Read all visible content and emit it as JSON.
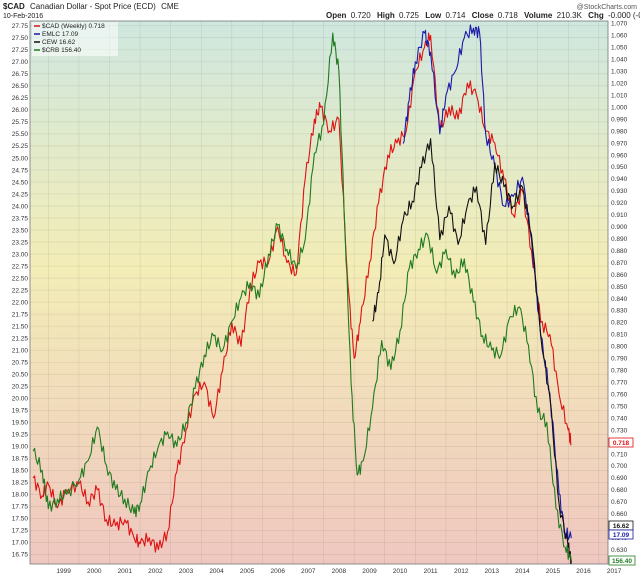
{
  "header": {
    "symbol": "$CAD",
    "name": "Canadian Dollar - Spot Price (ECD)",
    "exchange": "CME",
    "date": "10-Feb-2016",
    "open_label": "Open",
    "open_value": "0.720",
    "high_label": "High",
    "high_value": "0.725",
    "low_label": "Low",
    "low_value": "0.714",
    "close_label": "Close",
    "close_value": "0.718",
    "volume_label": "Volume",
    "volume_value": "210.3K",
    "chg_label": "Chg",
    "chg_value": "-0.000 (-0.04%)",
    "watermark": "@StockCharts.com"
  },
  "price_tags": {
    "cad": "0.718",
    "cew": "16.62",
    "emlc": "17.09",
    "crb": "156.40"
  },
  "chart_data": {
    "type": "line",
    "x_labels": [
      "1999",
      "2000",
      "2001",
      "2002",
      "2003",
      "2004",
      "2005",
      "2006",
      "2007",
      "2008",
      "2009",
      "2010",
      "2011",
      "2012",
      "2013",
      "2014",
      "2015",
      "2016",
      "2017"
    ],
    "left_axis_ticks": [
      "27.75",
      "27.50",
      "27.25",
      "27.00",
      "26.75",
      "26.50",
      "26.25",
      "26.00",
      "25.75",
      "25.50",
      "25.25",
      "25.00",
      "24.75",
      "24.50",
      "24.25",
      "24.00",
      "23.75",
      "23.50",
      "23.25",
      "23.00",
      "22.75",
      "22.50",
      "22.25",
      "22.00",
      "21.75",
      "21.50",
      "21.25",
      "21.00",
      "20.75",
      "20.50",
      "20.25",
      "20.00",
      "19.75",
      "19.50",
      "19.25",
      "19.00",
      "18.75",
      "18.50",
      "18.25",
      "18.00",
      "17.75",
      "17.50",
      "17.25",
      "17.00",
      "16.75"
    ],
    "right_axis_ticks": [
      "1.070",
      "1.060",
      "1.050",
      "1.040",
      "1.030",
      "1.020",
      "1.010",
      "1.000",
      "0.990",
      "0.980",
      "0.970",
      "0.960",
      "0.950",
      "0.940",
      "0.930",
      "0.920",
      "0.910",
      "0.900",
      "0.890",
      "0.880",
      "0.870",
      "0.860",
      "0.850",
      "0.840",
      "0.830",
      "0.820",
      "0.810",
      "0.800",
      "0.790",
      "0.780",
      "0.770",
      "0.760",
      "0.750",
      "0.740",
      "0.730",
      "0.720",
      "0.710",
      "0.700",
      "0.690",
      "0.680",
      "0.670",
      "0.660",
      "0.650",
      "0.640",
      "0.630",
      "0.620"
    ],
    "left_range": [
      16.55,
      27.85
    ],
    "right_range": [
      0.618,
      1.072
    ],
    "grid": true,
    "legend_placement": "top-left",
    "series": [
      {
        "name": "$CAD (Weekly) 0.718",
        "color": "#dd1111",
        "axis": "right",
        "x": [
          1998.5,
          1998.8,
          1999.0,
          1999.3,
          1999.6,
          2000.0,
          2000.3,
          2000.6,
          2000.9,
          2001.2,
          2001.5,
          2001.8,
          2002.0,
          2002.3,
          2002.6,
          2002.9,
          2003.2,
          2003.5,
          2003.8,
          2004.1,
          2004.4,
          2004.7,
          2005.0,
          2005.3,
          2005.6,
          2005.9,
          2006.2,
          2006.5,
          2006.8,
          2007.1,
          2007.4,
          2007.7,
          2007.9,
          2008.2,
          2008.5,
          2008.8,
          2009.0,
          2009.2,
          2009.5,
          2009.8,
          2010.1,
          2010.4,
          2010.7,
          2011.0,
          2011.3,
          2011.5,
          2011.8,
          2012.1,
          2012.4,
          2012.7,
          2013.0,
          2013.3,
          2013.6,
          2013.9,
          2014.2,
          2014.5,
          2014.8,
          2015.1,
          2015.4,
          2015.7,
          2016.0,
          2016.1
        ],
        "values": [
          0.69,
          0.675,
          0.685,
          0.665,
          0.68,
          0.685,
          0.67,
          0.68,
          0.655,
          0.65,
          0.655,
          0.64,
          0.635,
          0.64,
          0.63,
          0.645,
          0.695,
          0.73,
          0.76,
          0.77,
          0.74,
          0.78,
          0.82,
          0.8,
          0.85,
          0.87,
          0.87,
          0.9,
          0.87,
          0.86,
          0.94,
          0.99,
          1.0,
          0.98,
          0.99,
          0.85,
          0.79,
          0.82,
          0.87,
          0.92,
          0.96,
          0.97,
          0.98,
          1.03,
          1.05,
          1.06,
          0.98,
          1.0,
          0.99,
          1.02,
          1.01,
          0.98,
          0.97,
          0.94,
          0.91,
          0.93,
          0.88,
          0.82,
          0.81,
          0.76,
          0.73,
          0.718
        ]
      },
      {
        "name": "EMLC 17.09",
        "color": "#1a1aa8",
        "axis": "left",
        "x": [
          2010.6,
          2010.8,
          2011.0,
          2011.3,
          2011.5,
          2011.8,
          2012.0,
          2012.3,
          2012.6,
          2012.9,
          2013.1,
          2013.3,
          2013.6,
          2013.9,
          2014.2,
          2014.5,
          2014.8,
          2015.1,
          2015.4,
          2015.7,
          2015.9,
          2016.1
        ],
        "values": [
          25.3,
          26.2,
          27.0,
          27.6,
          27.2,
          25.5,
          26.3,
          26.8,
          27.5,
          27.7,
          27.6,
          25.5,
          24.8,
          24.0,
          24.2,
          24.6,
          23.3,
          21.3,
          20.1,
          18.0,
          17.2,
          17.09
        ]
      },
      {
        "name": "CEW 16.62",
        "color": "#111111",
        "axis": "left",
        "x": [
          2009.6,
          2009.8,
          2010.0,
          2010.3,
          2010.6,
          2010.9,
          2011.2,
          2011.5,
          2011.8,
          2012.1,
          2012.4,
          2012.7,
          2013.0,
          2013.3,
          2013.6,
          2013.9,
          2014.2,
          2014.5,
          2014.8,
          2015.1,
          2015.4,
          2015.7,
          2016.0,
          2016.1
        ],
        "values": [
          21.6,
          22.2,
          23.4,
          22.8,
          23.7,
          24.1,
          24.8,
          25.4,
          23.3,
          24.0,
          23.2,
          24.0,
          24.4,
          23.2,
          24.9,
          24.4,
          24.0,
          24.4,
          23.4,
          21.3,
          20.0,
          17.8,
          16.9,
          16.62
        ]
      },
      {
        "name": "$CRB 156.40",
        "color": "#1f7a1f",
        "axis": "left",
        "x": [
          1998.5,
          1998.8,
          1999.0,
          1999.3,
          1999.6,
          2000.0,
          2000.3,
          2000.6,
          2000.9,
          2001.2,
          2001.5,
          2001.8,
          2002.0,
          2002.3,
          2002.6,
          2002.9,
          2003.2,
          2003.5,
          2003.8,
          2004.1,
          2004.4,
          2004.7,
          2005.0,
          2005.3,
          2005.6,
          2005.9,
          2006.2,
          2006.5,
          2006.8,
          2007.1,
          2007.4,
          2007.7,
          2008.0,
          2008.3,
          2008.5,
          2008.7,
          2008.9,
          2009.1,
          2009.3,
          2009.6,
          2009.9,
          2010.2,
          2010.5,
          2010.8,
          2011.1,
          2011.4,
          2011.7,
          2012.0,
          2012.3,
          2012.6,
          2012.9,
          2013.2,
          2013.5,
          2013.8,
          2014.1,
          2014.4,
          2014.7,
          2015.0,
          2015.3,
          2015.6,
          2015.9,
          2016.1
        ],
        "values": [
          18.9,
          18.5,
          17.7,
          17.9,
          18.0,
          18.3,
          18.7,
          19.4,
          18.6,
          18.1,
          17.9,
          17.6,
          17.8,
          18.5,
          19.0,
          19.3,
          19.0,
          19.5,
          20.2,
          20.9,
          21.3,
          21.0,
          21.6,
          22.1,
          22.4,
          22.1,
          23.0,
          23.6,
          23.1,
          22.7,
          23.3,
          25.1,
          25.7,
          27.6,
          26.8,
          23.5,
          20.3,
          18.4,
          18.7,
          19.8,
          21.2,
          20.6,
          21.4,
          22.7,
          23.1,
          23.4,
          22.6,
          23.1,
          22.5,
          22.9,
          22.0,
          21.3,
          21.0,
          20.9,
          21.7,
          21.9,
          21.1,
          19.7,
          19.5,
          17.7,
          16.9,
          16.62
        ]
      }
    ]
  }
}
